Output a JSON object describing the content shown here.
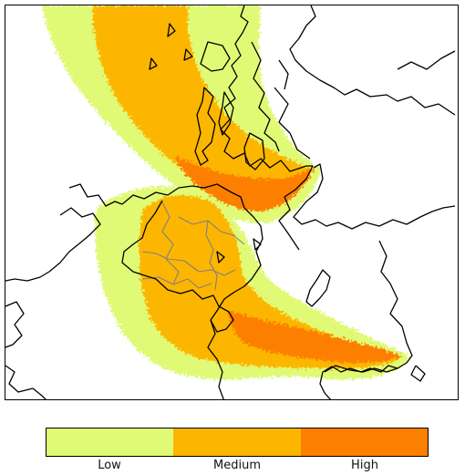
{
  "legend": {
    "items": [
      {
        "label": "Low",
        "color": "#e0fa75"
      },
      {
        "label": "Medium",
        "color": "#fdb600"
      },
      {
        "label": "High",
        "color": "#fd7f00"
      }
    ]
  },
  "map": {
    "colors": {
      "land_outline": "#000000",
      "border_lines": "#808080",
      "background": "#ffffff"
    }
  }
}
